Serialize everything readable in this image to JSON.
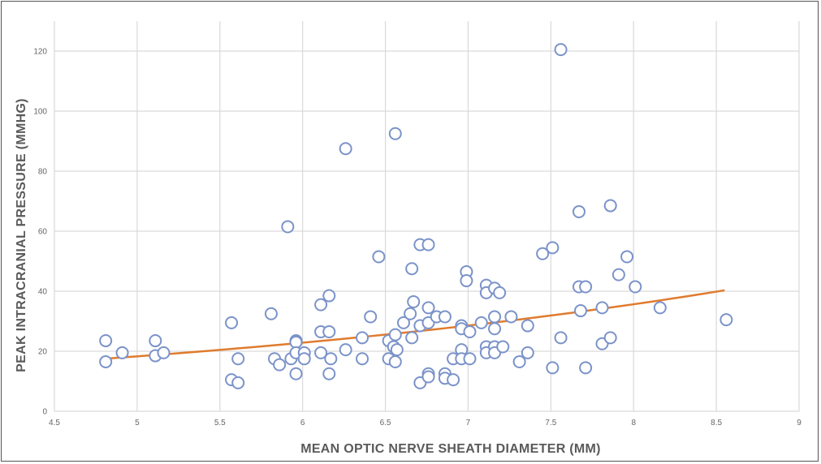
{
  "chart_data": {
    "type": "scatter",
    "title": "",
    "xlabel": "MEAN OPTIC NERVE SHEATH DIAMETER (MM)",
    "ylabel": "PEAK INTRACRANIAL PRESSURE (MMHG)",
    "xlim": [
      4.5,
      9
    ],
    "ylim": [
      0,
      130
    ],
    "xticks": [
      "4.5",
      "5",
      "5.5",
      "6",
      "6.5",
      "7",
      "7.5",
      "8",
      "8.5",
      "9"
    ],
    "yticks": [
      "0",
      "20",
      "40",
      "60",
      "80",
      "100",
      "120"
    ],
    "grid": true,
    "marker_color": "#7b93c9",
    "trendline_color": "#e07b2e",
    "points": [
      [
        4.81,
        23.5
      ],
      [
        4.81,
        16.5
      ],
      [
        4.91,
        19.5
      ],
      [
        5.11,
        23.5
      ],
      [
        5.11,
        18.5
      ],
      [
        5.16,
        19.5
      ],
      [
        5.57,
        29.5
      ],
      [
        5.57,
        10.5
      ],
      [
        5.61,
        17.5
      ],
      [
        5.61,
        9.5
      ],
      [
        5.81,
        32.5
      ],
      [
        5.83,
        17.5
      ],
      [
        5.86,
        15.5
      ],
      [
        5.91,
        61.5
      ],
      [
        5.93,
        17.5
      ],
      [
        5.96,
        23.5
      ],
      [
        5.96,
        23.0
      ],
      [
        5.96,
        19.5
      ],
      [
        5.96,
        12.5
      ],
      [
        6.01,
        19.5
      ],
      [
        6.01,
        17.5
      ],
      [
        6.11,
        35.5
      ],
      [
        6.11,
        26.5
      ],
      [
        6.11,
        19.5
      ],
      [
        6.16,
        38.5
      ],
      [
        6.16,
        26.5
      ],
      [
        6.17,
        17.5
      ],
      [
        6.16,
        12.5
      ],
      [
        6.26,
        87.5
      ],
      [
        6.26,
        20.5
      ],
      [
        6.36,
        24.5
      ],
      [
        6.36,
        17.5
      ],
      [
        6.41,
        31.5
      ],
      [
        6.46,
        51.5
      ],
      [
        6.52,
        23.5
      ],
      [
        6.52,
        17.5
      ],
      [
        6.56,
        92.5
      ],
      [
        6.56,
        25.5
      ],
      [
        6.55,
        21.5
      ],
      [
        6.57,
        20.5
      ],
      [
        6.56,
        16.5
      ],
      [
        6.61,
        29.5
      ],
      [
        6.65,
        32.5
      ],
      [
        6.66,
        47.5
      ],
      [
        6.67,
        36.5
      ],
      [
        6.66,
        24.5
      ],
      [
        6.71,
        55.5
      ],
      [
        6.71,
        28.5
      ],
      [
        6.71,
        9.5
      ],
      [
        6.76,
        55.5
      ],
      [
        6.76,
        34.5
      ],
      [
        6.76,
        29.5
      ],
      [
        6.76,
        12.5
      ],
      [
        6.76,
        11.5
      ],
      [
        6.81,
        31.5
      ],
      [
        6.86,
        31.5
      ],
      [
        6.86,
        12.5
      ],
      [
        6.86,
        11.0
      ],
      [
        6.91,
        17.5
      ],
      [
        6.91,
        10.5
      ],
      [
        6.96,
        28.5
      ],
      [
        6.96,
        27.5
      ],
      [
        6.96,
        20.5
      ],
      [
        6.96,
        17.5
      ],
      [
        6.99,
        46.5
      ],
      [
        6.99,
        43.5
      ],
      [
        7.01,
        26.5
      ],
      [
        7.01,
        17.5
      ],
      [
        7.08,
        29.5
      ],
      [
        7.11,
        42.0
      ],
      [
        7.11,
        39.5
      ],
      [
        7.11,
        21.5
      ],
      [
        7.11,
        19.5
      ],
      [
        7.16,
        41.0
      ],
      [
        7.16,
        31.5
      ],
      [
        7.16,
        27.5
      ],
      [
        7.16,
        21.5
      ],
      [
        7.16,
        19.5
      ],
      [
        7.19,
        39.5
      ],
      [
        7.21,
        21.5
      ],
      [
        7.26,
        31.5
      ],
      [
        7.31,
        16.5
      ],
      [
        7.36,
        28.5
      ],
      [
        7.36,
        19.5
      ],
      [
        7.45,
        52.5
      ],
      [
        7.51,
        54.5
      ],
      [
        7.51,
        14.5
      ],
      [
        7.56,
        120.5
      ],
      [
        7.56,
        24.5
      ],
      [
        7.67,
        66.5
      ],
      [
        7.67,
        41.5
      ],
      [
        7.68,
        33.5
      ],
      [
        7.71,
        41.5
      ],
      [
        7.71,
        14.5
      ],
      [
        7.81,
        34.5
      ],
      [
        7.81,
        22.5
      ],
      [
        7.86,
        68.5
      ],
      [
        7.86,
        24.5
      ],
      [
        7.91,
        45.5
      ],
      [
        7.96,
        51.5
      ],
      [
        8.01,
        41.5
      ],
      [
        8.16,
        34.5
      ],
      [
        8.56,
        30.5
      ]
    ],
    "trendline": {
      "type": "exponential",
      "x_range": [
        4.8,
        8.55
      ],
      "values": [
        [
          4.8,
          17.5
        ],
        [
          5.5,
          20.5
        ],
        [
          6.0,
          22.8
        ],
        [
          6.5,
          25.4
        ],
        [
          7.0,
          28.3
        ],
        [
          7.5,
          31.7
        ],
        [
          8.0,
          35.5
        ],
        [
          8.55,
          40.3
        ]
      ]
    }
  }
}
